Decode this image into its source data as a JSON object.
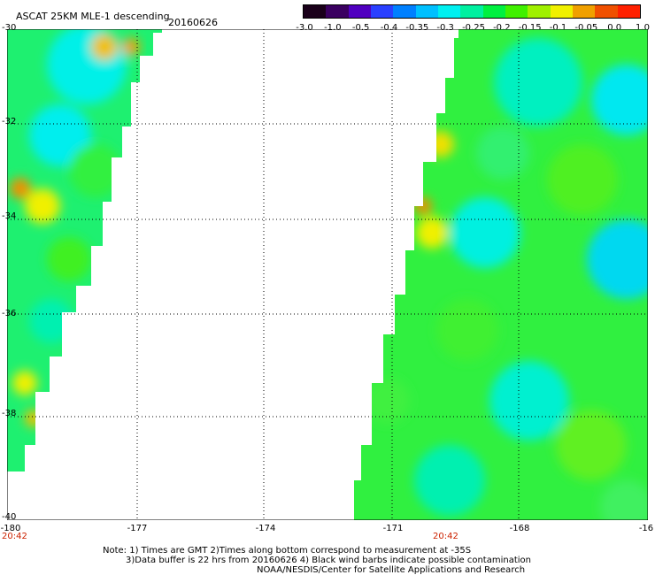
{
  "header": {
    "title": "ASCAT 25KM MLE-1 descending",
    "date": "20160626"
  },
  "colorbar": {
    "labels": [
      "-3.0",
      "-1.0",
      "-0.5",
      "-0.4",
      "-0.35",
      "-0.3",
      "-0.25",
      "-0.2",
      "-0.15",
      "-0.1",
      "-0.05",
      "0.0",
      "1.0"
    ],
    "colors": [
      "#1a001a",
      "#3a0060",
      "#5000c0",
      "#2a40ff",
      "#0080ff",
      "#00c0ff",
      "#00f0f0",
      "#00f0a0",
      "#00f040",
      "#40f000",
      "#a0f000",
      "#f0f000",
      "#f0a000",
      "#f05000",
      "#ff2000"
    ]
  },
  "map": {
    "lat_labels": [
      "-30",
      "-32",
      "-34",
      "-36",
      "-38",
      "-40"
    ],
    "lon_labels": [
      "-180",
      "-177",
      "-174",
      "-171",
      "-168",
      "-16"
    ],
    "time_labels": [
      "20:42",
      "20:42"
    ]
  },
  "notes": {
    "line1": "Note: 1) Times are GMT 2)Times along bottom correspond to measurement at -35S",
    "line2": "3)Data buffer is 22 hrs from 20160626 4) Black wind barbs indicate possible contamination",
    "line3": "NOAA/NESDIS/Center for Satellite Applications and Research"
  }
}
